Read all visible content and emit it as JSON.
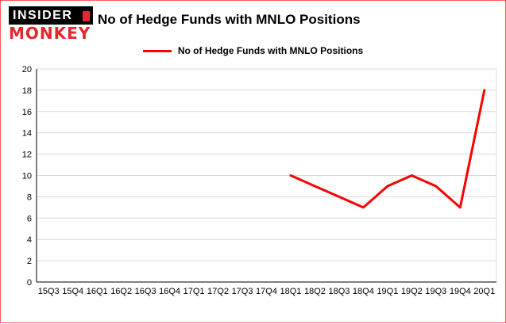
{
  "logo": {
    "line1": "INSIDER",
    "line2": "MONKEY"
  },
  "header": {
    "title": "No of Hedge Funds with MNLO Positions"
  },
  "legend": {
    "label": "No of Hedge Funds with MNLO Positions",
    "color": "#ff0000"
  },
  "colors": {
    "line": "#ff0000",
    "grid": "#d9d9d9",
    "axis": "#000000",
    "border": "#fb5a5a"
  },
  "chart_data": {
    "type": "line",
    "title": "No of Hedge Funds with MNLO Positions",
    "categories": [
      "15Q3",
      "15Q4",
      "16Q1",
      "16Q2",
      "16Q3",
      "16Q4",
      "17Q1",
      "17Q2",
      "17Q3",
      "17Q4",
      "18Q1",
      "18Q2",
      "18Q3",
      "18Q4",
      "19Q1",
      "19Q2",
      "19Q3",
      "19Q4",
      "20Q1"
    ],
    "series": [
      {
        "name": "No of Hedge Funds with MNLO Positions",
        "color": "#ff0000",
        "values": [
          null,
          null,
          null,
          null,
          null,
          null,
          null,
          null,
          null,
          null,
          10,
          9,
          8,
          7,
          9,
          10,
          9,
          7,
          18
        ]
      }
    ],
    "xlabel": "",
    "ylabel": "",
    "ylim": [
      0,
      20
    ],
    "yticks": [
      0,
      2,
      4,
      6,
      8,
      10,
      12,
      14,
      16,
      18,
      20
    ],
    "grid": true,
    "legend_position": "top"
  }
}
